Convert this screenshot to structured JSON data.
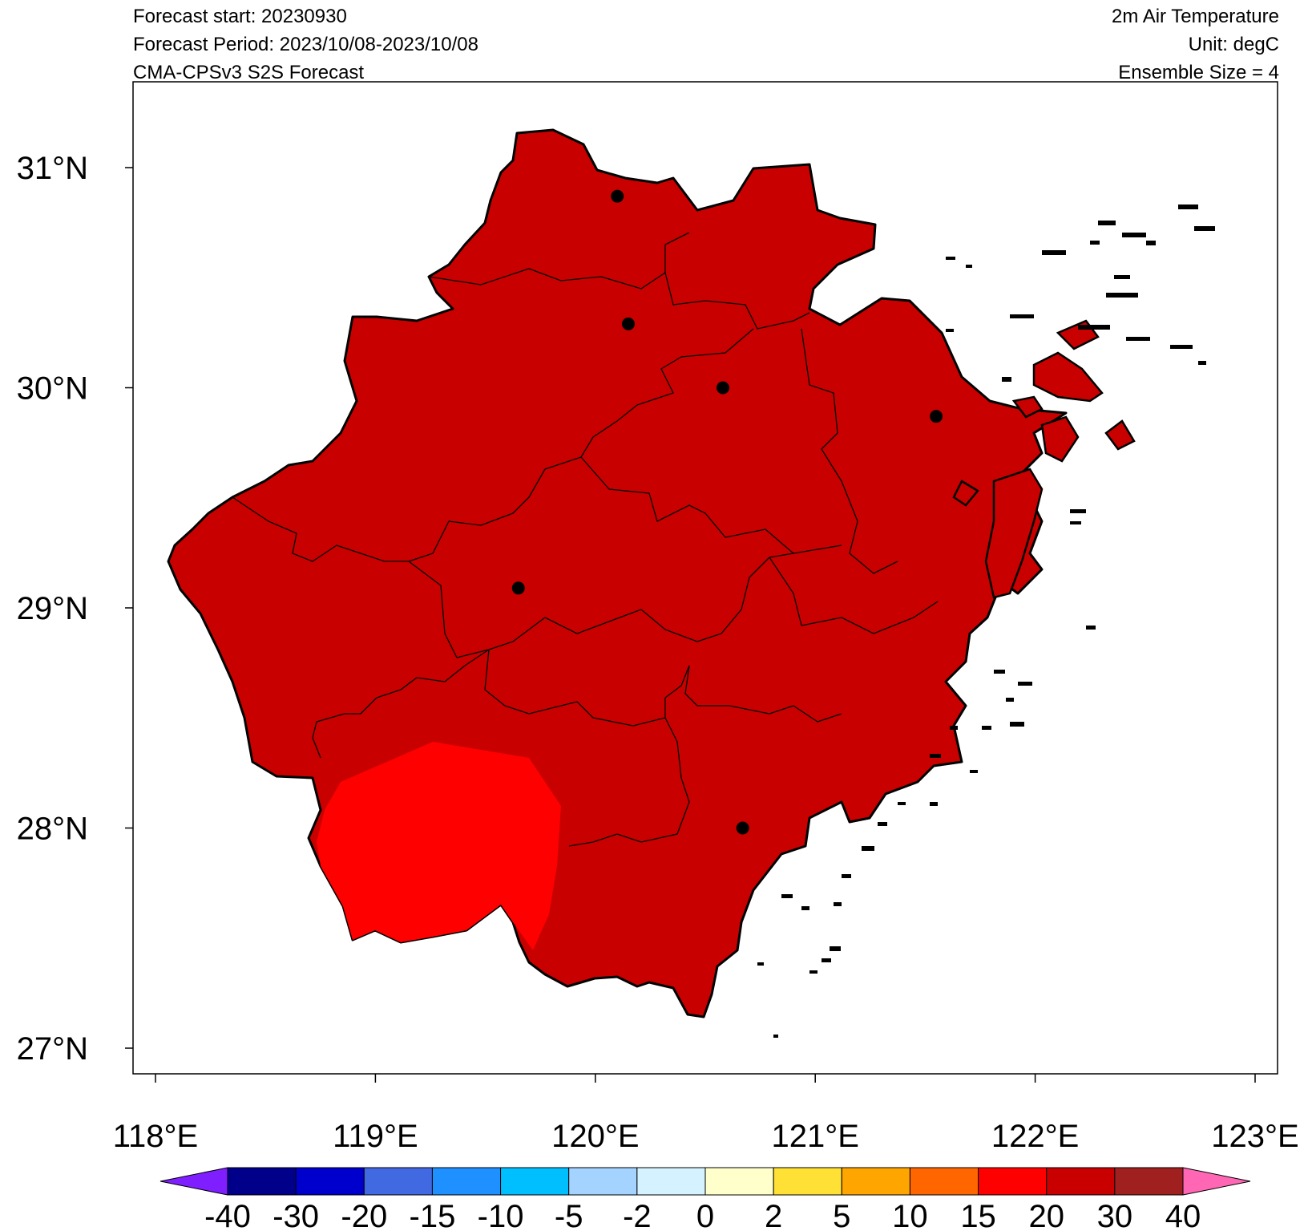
{
  "header": {
    "left": [
      "Forecast start: 20230930",
      "Forecast Period: 2023/10/08-2023/10/08",
      "CMA-CPSv3 S2S Forecast"
    ],
    "right": [
      "2m Air Temperature",
      "Unit: degC",
      "Ensemble Size = 4"
    ]
  },
  "axes": {
    "lat_ticks": [
      {
        "value": 31,
        "label": "31°N"
      },
      {
        "value": 30,
        "label": "30°N"
      },
      {
        "value": 29,
        "label": "29°N"
      },
      {
        "value": 28,
        "label": "28°N"
      },
      {
        "value": 27,
        "label": "27°N"
      }
    ],
    "lon_ticks": [
      {
        "value": 118,
        "label": "118°E"
      },
      {
        "value": 119,
        "label": "119°E"
      },
      {
        "value": 120,
        "label": "120°E"
      },
      {
        "value": 121,
        "label": "121°E"
      },
      {
        "value": 122,
        "label": "122°E"
      },
      {
        "value": 123,
        "label": "123°E"
      }
    ],
    "lon_range": [
      117.9,
      123.1
    ],
    "lat_range": [
      26.9,
      31.4
    ]
  },
  "colorbar": {
    "colors": [
      "#7f1fff",
      "#00008b",
      "#0000cd",
      "#4169e1",
      "#1e90ff",
      "#00bfff",
      "#a4d3ff",
      "#d4f2ff",
      "#ffffcc",
      "#ffe135",
      "#ffa500",
      "#ff6600",
      "#ff0000",
      "#c80000",
      "#a02020",
      "#ff66b4"
    ],
    "labels": [
      "-40",
      "-30",
      "-20",
      "-15",
      "-10",
      "-5",
      "-2",
      "0",
      "2",
      "5",
      "10",
      "15",
      "20",
      "30",
      "40"
    ]
  },
  "fill": {
    "main_color": "#c80000",
    "warm_color": "#ff0000",
    "main_range": "20-30",
    "warm_range": "15-20"
  },
  "cities": [
    {
      "lon": 120.1,
      "lat": 30.87
    },
    {
      "lon": 120.15,
      "lat": 30.29
    },
    {
      "lon": 120.58,
      "lat": 30.0
    },
    {
      "lon": 121.55,
      "lat": 29.87
    },
    {
      "lon": 119.65,
      "lat": 29.09
    },
    {
      "lon": 120.67,
      "lat": 28.0
    }
  ]
}
